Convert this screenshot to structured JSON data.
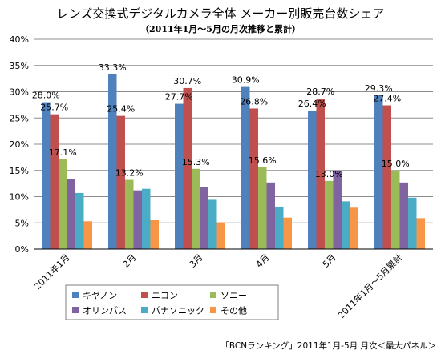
{
  "chart_data": {
    "type": "bar",
    "title": "レンズ交換式デジタルカメラ全体 メーカー別販売台数シェア",
    "subtitle": "（2011年1月〜5月の月次推移と累計）",
    "xlabel": "",
    "ylabel": "",
    "ylim": [
      0,
      40
    ],
    "yticks": [
      "0%",
      "5%",
      "10%",
      "15%",
      "20%",
      "25%",
      "30%",
      "35%",
      "40%"
    ],
    "grid": true,
    "legend_position": "bottom",
    "categories": [
      "2011年1月",
      "2月",
      "3月",
      "4月",
      "5月",
      "2011年1月〜5月累計"
    ],
    "series": [
      {
        "name": "キヤノン",
        "color": "#4F81BD",
        "values": [
          28.0,
          33.3,
          27.7,
          30.9,
          26.4,
          29.3
        ]
      },
      {
        "name": "ニコン",
        "color": "#C0504D",
        "values": [
          25.7,
          25.4,
          30.7,
          26.8,
          28.7,
          27.4
        ]
      },
      {
        "name": "ソニー",
        "color": "#9BBB59",
        "values": [
          17.1,
          13.2,
          15.3,
          15.6,
          13.0,
          15.0
        ]
      },
      {
        "name": "オリンパス",
        "color": "#8064A2",
        "values": [
          13.3,
          11.2,
          11.9,
          12.7,
          14.9,
          12.7
        ]
      },
      {
        "name": "パナソニック",
        "color": "#4BACC6",
        "values": [
          10.7,
          11.5,
          9.4,
          8.1,
          9.1,
          9.8
        ]
      },
      {
        "name": "その他",
        "color": "#F79646",
        "values": [
          5.3,
          5.5,
          5.1,
          6.0,
          7.9,
          5.9
        ]
      }
    ],
    "data_labels": [
      {
        "series": 0,
        "category": 0,
        "text": "28.0%"
      },
      {
        "series": 1,
        "category": 0,
        "text": "25.7%"
      },
      {
        "series": 2,
        "category": 0,
        "text": "17.1%"
      },
      {
        "series": 0,
        "category": 1,
        "text": "33.3%"
      },
      {
        "series": 1,
        "category": 1,
        "text": "25.4%"
      },
      {
        "series": 2,
        "category": 1,
        "text": "13.2%"
      },
      {
        "series": 0,
        "category": 2,
        "text": "27.7%"
      },
      {
        "series": 1,
        "category": 2,
        "text": "30.7%"
      },
      {
        "series": 2,
        "category": 2,
        "text": "15.3%"
      },
      {
        "series": 0,
        "category": 3,
        "text": "30.9%"
      },
      {
        "series": 1,
        "category": 3,
        "text": "26.8%"
      },
      {
        "series": 2,
        "category": 3,
        "text": "15.6%"
      },
      {
        "series": 0,
        "category": 4,
        "text": "26.4%"
      },
      {
        "series": 1,
        "category": 4,
        "text": "28.7%"
      },
      {
        "series": 2,
        "category": 4,
        "text": "13.0%"
      },
      {
        "series": 0,
        "category": 5,
        "text": "29.3%"
      },
      {
        "series": 1,
        "category": 5,
        "text": "27.4%"
      },
      {
        "series": 2,
        "category": 5,
        "text": "15.0%"
      }
    ],
    "source_note": "「BCNランキング」2011年1月-5月 月次＜最大パネル＞"
  }
}
